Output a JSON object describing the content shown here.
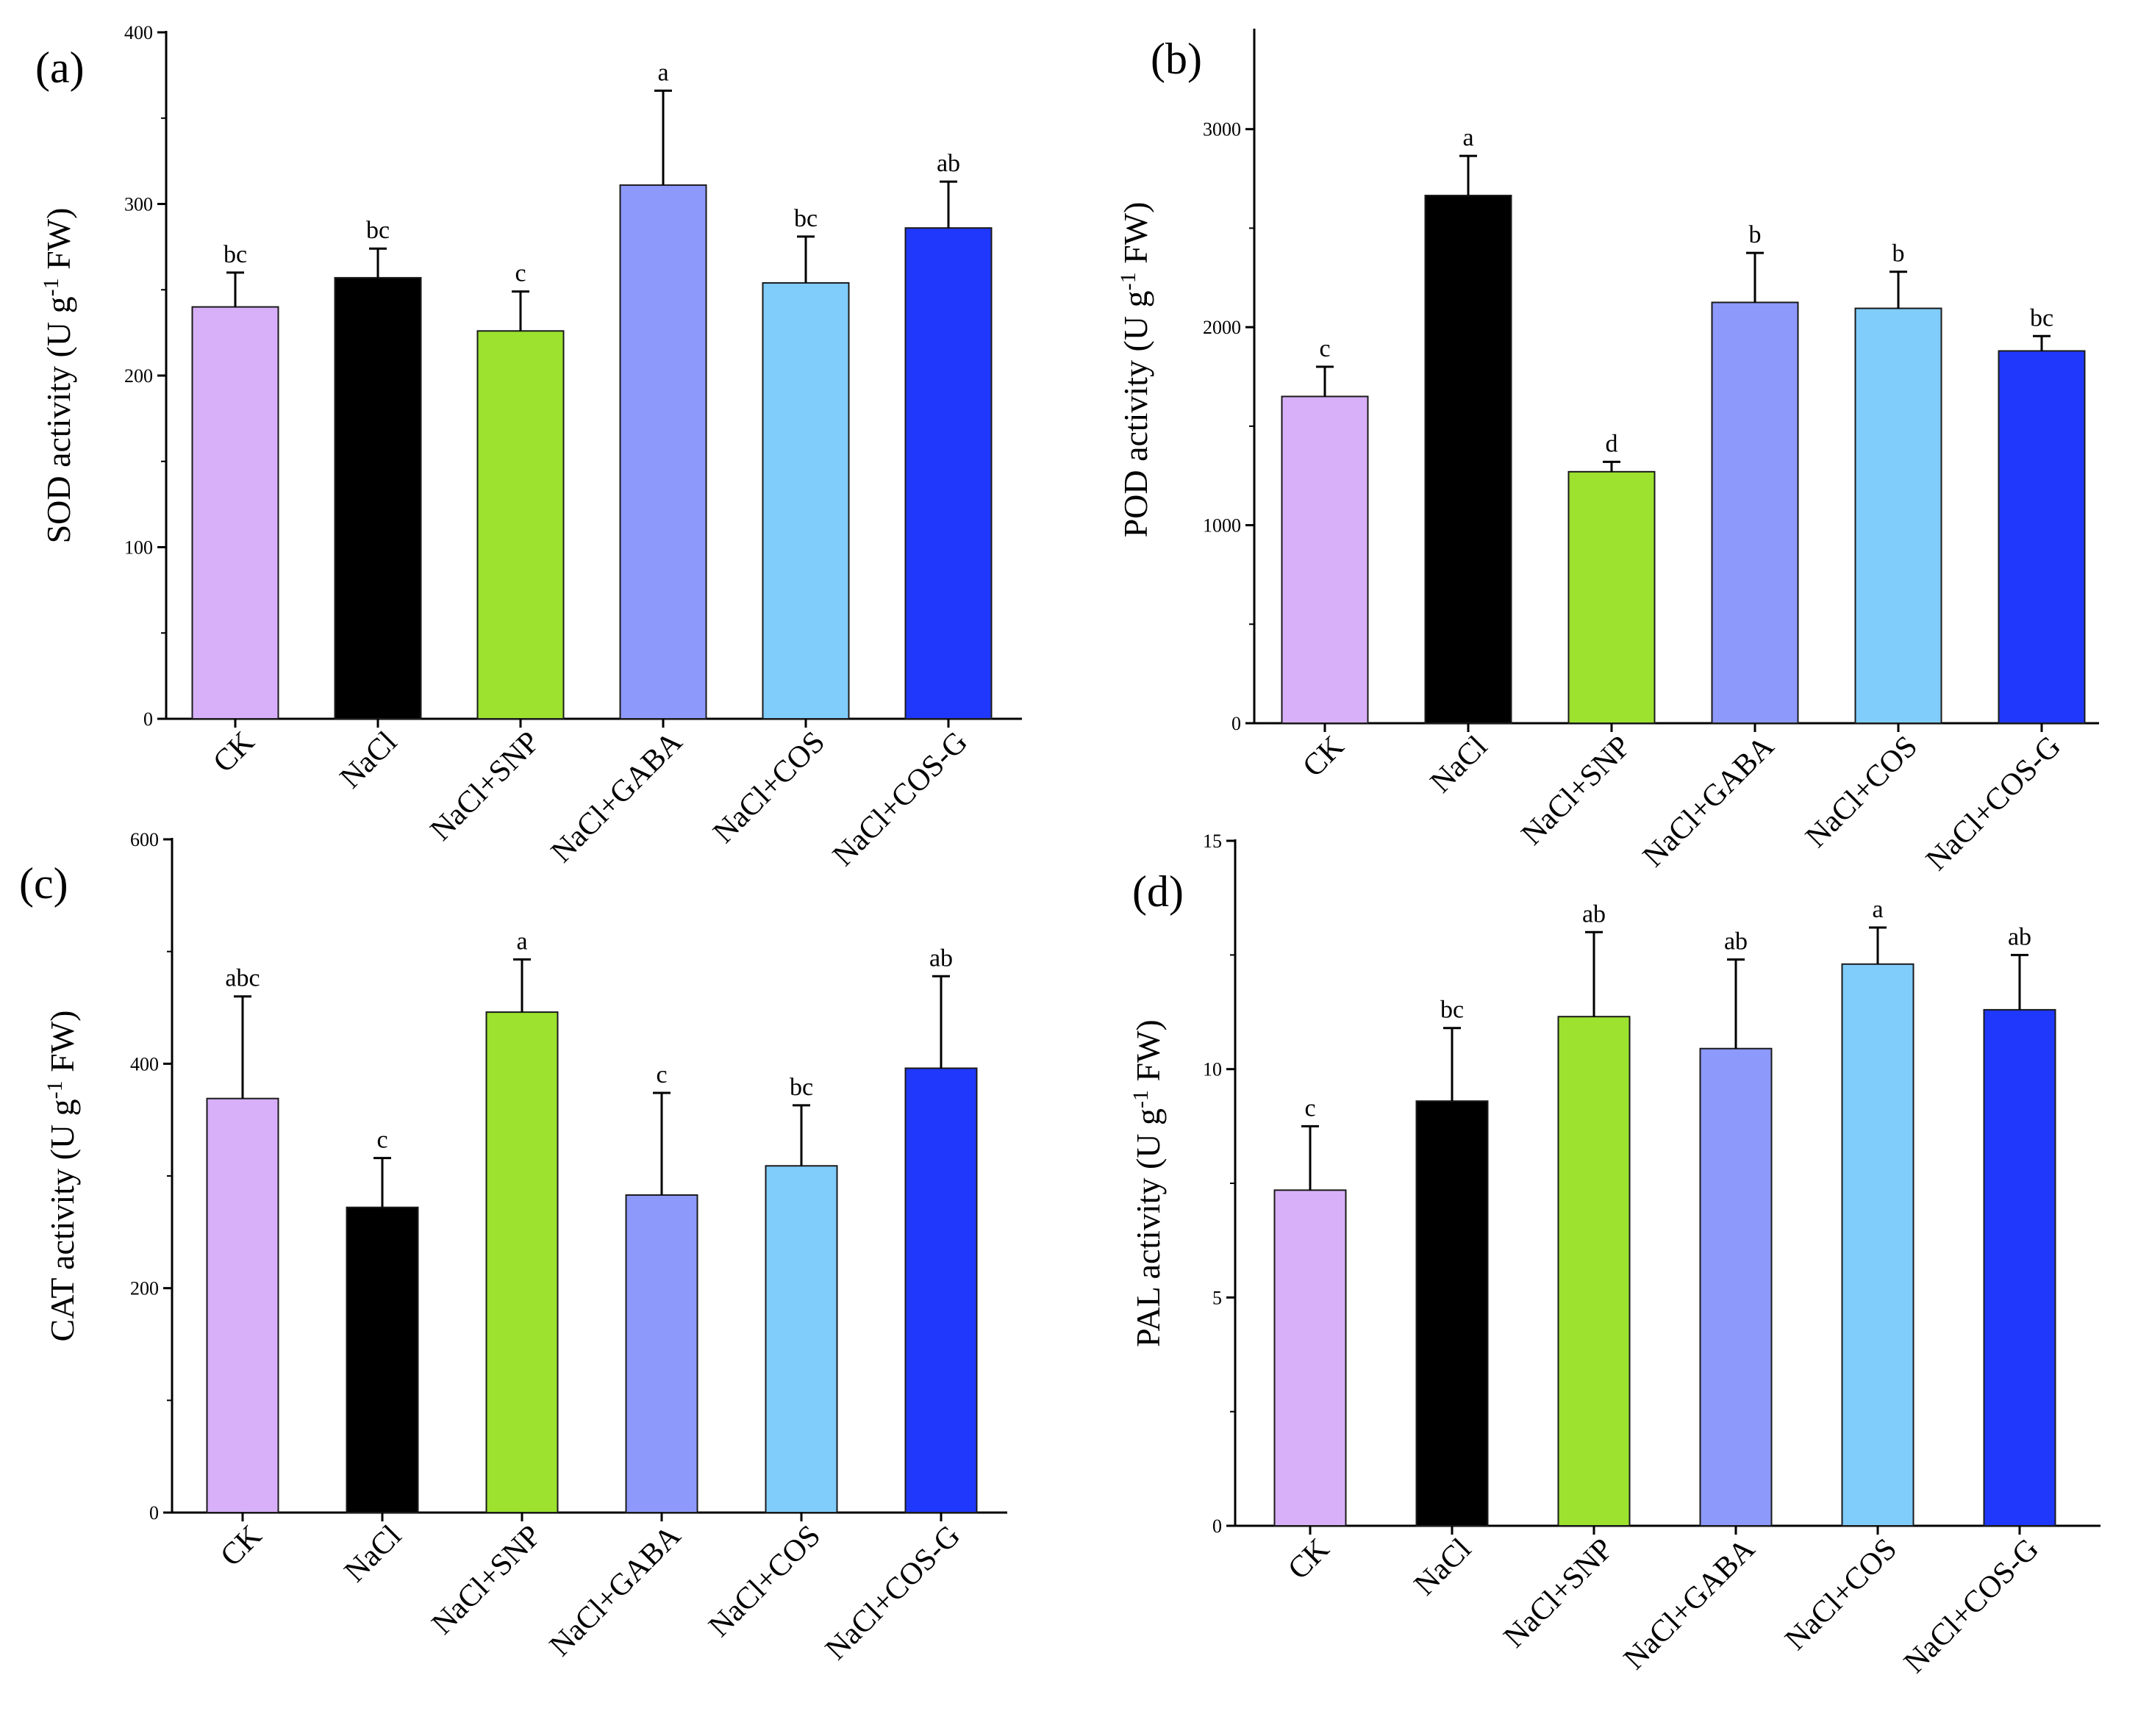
{
  "chart_data": [
    {
      "type": "bar",
      "panel_label": "(a)",
      "ylabel": "SOD activity (U g-1 FW)",
      "ylabel_parts": {
        "main": "SOD activity (U g",
        "sup": "-1",
        "tail": " FW)"
      },
      "categories": [
        "CK",
        "NaCl",
        "NaCl+SNP",
        "NaCl+GABA",
        "NaCl+COS",
        "NaCl+COS-G"
      ],
      "values": [
        240,
        257,
        226,
        311,
        254,
        286
      ],
      "errors": [
        20,
        17,
        23,
        55,
        27,
        27
      ],
      "significance": [
        "bc",
        "bc",
        "c",
        "a",
        "bc",
        "ab"
      ],
      "ylim": [
        0,
        400
      ],
      "yticks": [
        "0",
        "100",
        "200",
        "300",
        "400"
      ],
      "colors": [
        "#d8b0fa",
        "#000000",
        "#9ce22e",
        "#8e99fc",
        "#80cdfc",
        "#2038fc"
      ]
    },
    {
      "type": "bar",
      "panel_label": "(b)",
      "ylabel": "POD activity (U g-1 FW)",
      "ylabel_parts": {
        "main": "POD activity (U g",
        "sup": "-1",
        "tail": " FW)"
      },
      "categories": [
        "CK",
        "NaCl",
        "NaCl+SNP",
        "NaCl+GABA",
        "NaCl+COS",
        "NaCl+COS-G"
      ],
      "values": [
        1650,
        2665,
        1270,
        2125,
        2095,
        1880
      ],
      "errors": [
        150,
        200,
        50,
        250,
        185,
        75
      ],
      "significance": [
        "c",
        "a",
        "d",
        "b",
        "b",
        "bc"
      ],
      "ylim": [
        0,
        3500
      ],
      "yticks": [
        "0",
        "1000",
        "2000",
        "3000"
      ],
      "colors": [
        "#d8b0fa",
        "#000000",
        "#9ce22e",
        "#8e99fc",
        "#80cdfc",
        "#2038fc"
      ]
    },
    {
      "type": "bar",
      "panel_label": "(c)",
      "ylabel": "CAT activity (U g-1 FW)",
      "ylabel_parts": {
        "main": "CAT activity (U g",
        "sup": "-1",
        "tail": " FW)"
      },
      "categories": [
        "CK",
        "NaCl",
        "NaCl+SNP",
        "NaCl+GABA",
        "NaCl+COS",
        "NaCl+COS-G"
      ],
      "values": [
        369,
        272,
        446,
        283,
        309,
        396
      ],
      "errors": [
        91,
        44,
        47,
        91,
        54,
        82
      ],
      "significance": [
        "abc",
        "c",
        "a",
        "c",
        "bc",
        "ab"
      ],
      "ylim": [
        0,
        600
      ],
      "yticks": [
        "0",
        "200",
        "400",
        "600"
      ],
      "colors": [
        "#d8b0fa",
        "#000000",
        "#9ce22e",
        "#8e99fc",
        "#80cdfc",
        "#2038fc"
      ]
    },
    {
      "type": "bar",
      "panel_label": "(d)",
      "ylabel": "PAL activity (U g-1 FW)",
      "ylabel_parts": {
        "main": "PAL activity (U g",
        "sup": "-1",
        "tail": " FW)"
      },
      "categories": [
        "CK",
        "NaCl",
        "NaCl+SNP",
        "NaCl+GABA",
        "NaCl+COS",
        "NaCl+COS-G"
      ],
      "values": [
        7.35,
        9.3,
        11.15,
        10.45,
        12.3,
        11.3
      ],
      "errors": [
        1.4,
        1.6,
        1.85,
        1.95,
        0.8,
        1.2
      ],
      "significance": [
        "c",
        "bc",
        "ab",
        "ab",
        "a",
        "ab"
      ],
      "ylim": [
        0,
        15
      ],
      "yticks": [
        "0",
        "5",
        "10",
        "15"
      ],
      "colors": [
        "#d8b0fa",
        "#000000",
        "#9ce22e",
        "#8e99fc",
        "#80cdfc",
        "#2038fc"
      ]
    }
  ]
}
